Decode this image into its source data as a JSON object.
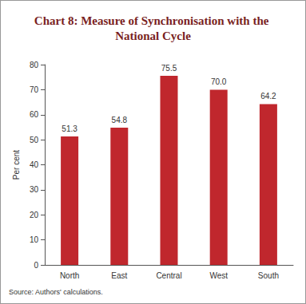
{
  "chart_data": {
    "type": "bar",
    "title": "Chart 8: Measure of Synchronisation with the National Cycle",
    "y_label": "Per cent",
    "source": "Source: Authors' calculations.",
    "categories": [
      "North",
      "East",
      "Central",
      "West",
      "South"
    ],
    "values": [
      51.3,
      54.8,
      75.5,
      70,
      64.2
    ],
    "value_labels": [
      "51.3",
      "54.8",
      "75.5",
      "70.0",
      "64.2"
    ],
    "color": "#c0272d",
    "ylim": [
      0,
      80
    ],
    "yticks": [
      0,
      10,
      20,
      30,
      40,
      50,
      60,
      70,
      80
    ],
    "grid": false,
    "data_labels": true
  }
}
